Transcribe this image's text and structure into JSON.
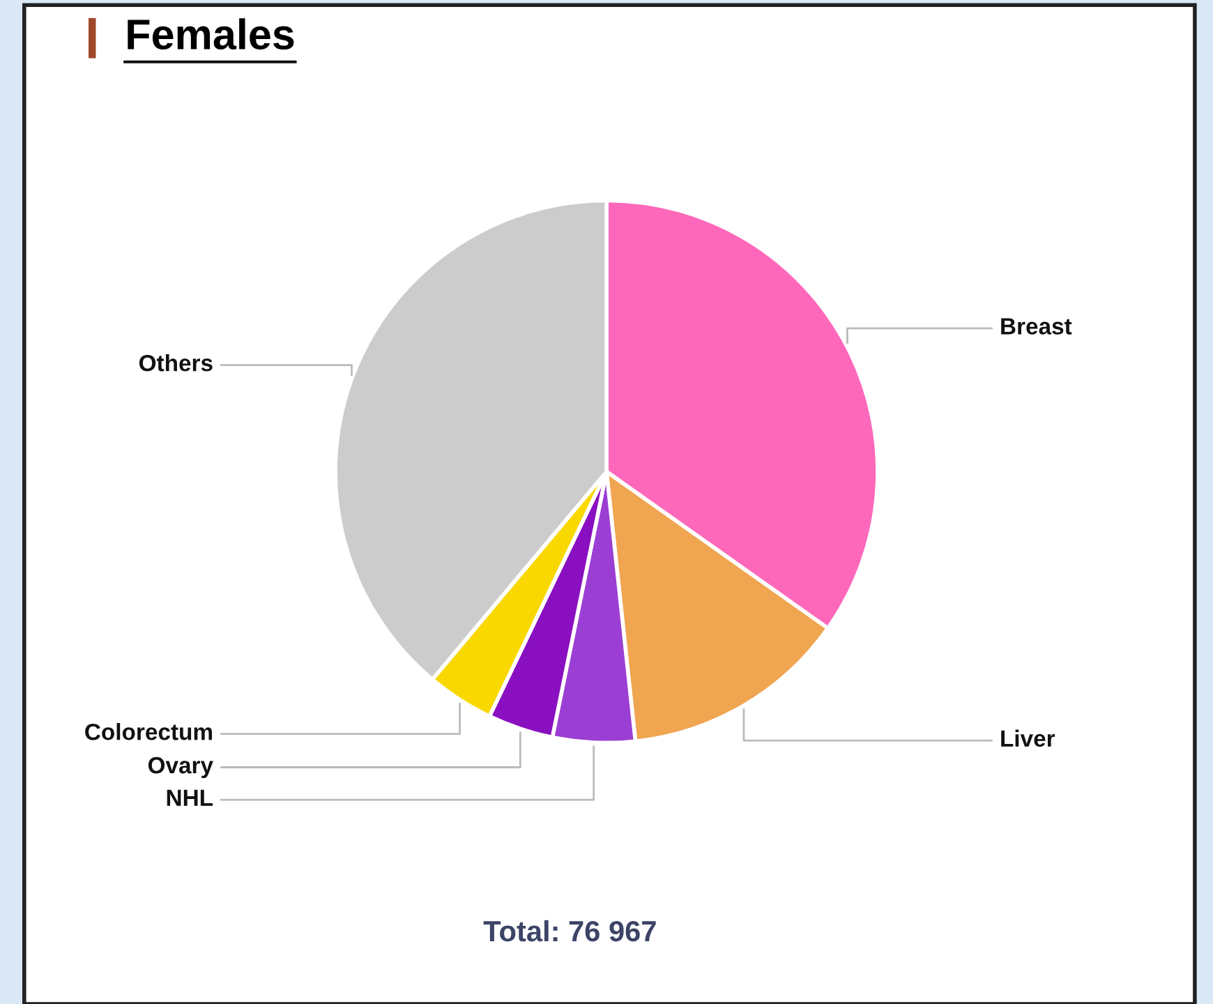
{
  "chart_data": {
    "type": "pie",
    "title": "Females",
    "categories": [
      "Breast",
      "Liver",
      "NHL",
      "Ovary",
      "Colorectum",
      "Others"
    ],
    "values": [
      34.8,
      13.5,
      4.9,
      3.9,
      4.0,
      38.9
    ],
    "colors": [
      "#fe68bb",
      "#f0a550",
      "#9b3fd4",
      "#8a0fc0",
      "#f9d800",
      "#cccccc"
    ],
    "annotations": [
      "Total: 76 967"
    ]
  }
}
